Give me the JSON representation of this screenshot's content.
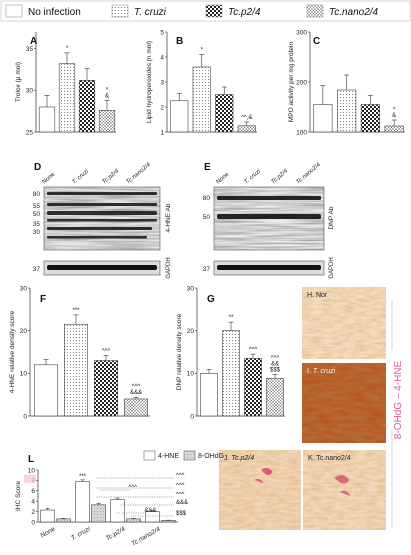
{
  "legend": [
    {
      "label": "No infection",
      "italic": false,
      "pattern": "white"
    },
    {
      "label": "T. cruzi",
      "italic": true,
      "pattern": "dots"
    },
    {
      "label": "Tc.p2/4",
      "italic": false,
      "pattern": "checker"
    },
    {
      "label": "Tc.nano2/4",
      "italic": false,
      "pattern": "cross"
    }
  ],
  "colors": {
    "ihc_axis": "#e0569a",
    "tissue_light": "#f3dcc0",
    "tissue_dark": "#b8551f",
    "stain": "#d9446a"
  },
  "chart_data": [
    {
      "panel": "A",
      "type": "bar",
      "ylabel": "Trolox (μ mol)",
      "yticks": [
        "25",
        "30",
        "35"
      ],
      "ylim": [
        25,
        37
      ],
      "values": [
        28.0,
        33.2,
        31.2,
        27.6
      ],
      "errors": [
        1.4,
        1.3,
        1.4,
        1.2
      ],
      "annotations": [
        "",
        "*",
        "",
        "^\n&"
      ]
    },
    {
      "panel": "B",
      "type": "bar",
      "ylabel": "Lipid hydroperoxides (n mol)",
      "yticks": [
        "1",
        "2",
        "3",
        "4",
        "5"
      ],
      "ylim": [
        1,
        5
      ],
      "values": [
        2.25,
        3.6,
        2.5,
        1.25
      ],
      "errors": [
        0.3,
        0.5,
        0.3,
        0.15
      ],
      "annotations": [
        "",
        "*",
        "",
        "^^,&"
      ]
    },
    {
      "panel": "C",
      "type": "bar",
      "ylabel": "MPO activity per mg protein",
      "yticks": [
        "100",
        "200",
        "300"
      ],
      "ylim": [
        100,
        300
      ],
      "values": [
        155,
        184,
        155,
        112
      ],
      "errors": [
        38,
        30,
        18,
        12
      ],
      "annotations": [
        "",
        "",
        "",
        "^\n&"
      ]
    },
    {
      "panel": "F",
      "type": "bar",
      "ylabel": "4-HNE relative density score",
      "yticks": [
        "0",
        "10",
        "20",
        "30"
      ],
      "ylim": [
        0,
        30
      ],
      "values": [
        12,
        21.5,
        13,
        4
      ],
      "errors": [
        1.2,
        2.2,
        1.2,
        0.4
      ],
      "annotations": [
        "",
        "***",
        "^^^",
        "^^^\n&&&"
      ]
    },
    {
      "panel": "G",
      "type": "bar",
      "ylabel": "DNP relative density score",
      "yticks": [
        "0",
        "10",
        "20",
        "30"
      ],
      "ylim": [
        0,
        30
      ],
      "values": [
        10,
        20,
        13.5,
        8.8
      ],
      "errors": [
        0.9,
        2.0,
        1.0,
        0.9
      ],
      "annotations": [
        "",
        "**",
        "^^^",
        "^^^\n&&\n$$$"
      ]
    },
    {
      "panel": "L",
      "type": "bar",
      "ylabel": "IHC Score",
      "yticks": [
        "0",
        "2",
        "4",
        "6",
        "8",
        "10"
      ],
      "ylim": [
        0,
        10
      ],
      "categories": [
        "None",
        "T. cruzi",
        "Tc.p2/4",
        "Tc.nano2/4"
      ],
      "series": [
        {
          "name": "4-HNE",
          "pattern": "white",
          "values": [
            2.3,
            7.8,
            4.3,
            2.0
          ],
          "errors": [
            0.3,
            0.3,
            0.3,
            0.2
          ]
        },
        {
          "name": "8-OHdG",
          "pattern": "gray",
          "values": [
            0.6,
            3.3,
            0.6,
            0.3
          ],
          "errors": [
            0.1,
            0.3,
            0.1,
            0.05
          ]
        }
      ],
      "annotations": [
        "***",
        "^^^",
        "^^^",
        "^^^",
        "^^^",
        "&&&",
        "&&&",
        "$$$"
      ]
    }
  ],
  "blots": {
    "D": {
      "label": "D",
      "columns": [
        "None",
        "T. cruzi",
        "Tc.p2/4",
        "Tc.nano2/4"
      ],
      "markers": [
        "80",
        "55",
        "50",
        "35",
        "30",
        "37"
      ],
      "antibody": "4-HNE Ab",
      "loading": "GAPDH"
    },
    "E": {
      "label": "E",
      "columns": [
        "None",
        "T. cruzi",
        "Tc.p2/4",
        "Tc.nano2/4"
      ],
      "markers": [
        "80",
        "50",
        "37"
      ],
      "antibody": "DNP Ab",
      "loading": "GAPDH"
    }
  },
  "ihc": {
    "axis_label_left": "8-OHdG",
    "axis_label_dash": " – ",
    "axis_label_right": "4-HNE",
    "panels": [
      {
        "label": "H. Nor"
      },
      {
        "label": "I. ",
        "italic": "T. cruzi"
      },
      {
        "label": "J. ",
        "italic": "Tc.p2/4"
      },
      {
        "label": "K. Tc.nano2/4"
      }
    ]
  }
}
